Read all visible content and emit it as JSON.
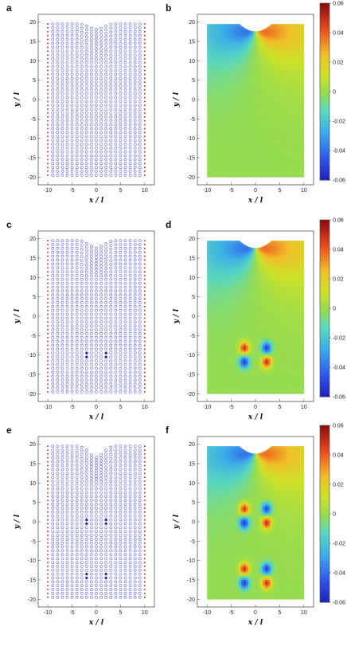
{
  "chart_data": [
    {
      "type": "scatter",
      "panel": "a",
      "xlabel": "x / l",
      "ylabel": "y / l",
      "x_ticks": [
        "-10",
        "-5",
        "0",
        "5",
        "10"
      ],
      "y_ticks": [
        "20",
        "15",
        "10",
        "5",
        "0",
        "-5",
        "-10",
        "-15",
        "-20"
      ],
      "xlim": [
        -12,
        12
      ],
      "ylim": [
        -22,
        22
      ],
      "series": [],
      "lattice": {
        "x_range": [
          -10,
          10
        ],
        "y_range": [
          -20,
          19.5
        ],
        "notch": [
          {
            "x": 0,
            "depth": 1.5
          }
        ],
        "dislocations": []
      },
      "colors": {
        "atoms": "#5a5ae6",
        "boundary": "#e03030"
      }
    },
    {
      "type": "heatmap",
      "panel": "b",
      "xlabel": "x / l",
      "ylabel": "y / l",
      "x_ticks": [
        "-10",
        "-5",
        "0",
        "5",
        "10"
      ],
      "y_ticks": [
        "20",
        "15",
        "10",
        "5",
        "0",
        "-5",
        "-10",
        "-15",
        "-20"
      ],
      "xlim": [
        -12,
        12
      ],
      "ylim": [
        -22,
        22
      ],
      "colorbar": {
        "min": -0.06,
        "max": 0.06,
        "ticks": [
          "0.06",
          "0.04",
          "0.02",
          "0",
          "-0.02",
          "-0.04",
          "-0.06"
        ]
      },
      "field": {
        "notch": {
          "x": 0,
          "y": 17.5,
          "amplitude": 0.06
        },
        "dislocation_dipoles": []
      }
    },
    {
      "type": "scatter",
      "panel": "c",
      "xlabel": "x / l",
      "ylabel": "y / l",
      "x_ticks": [
        "-10",
        "-5",
        "0",
        "5",
        "10"
      ],
      "y_ticks": [
        "20",
        "15",
        "10",
        "5",
        "0",
        "-5",
        "-10",
        "-15",
        "-20"
      ],
      "xlim": [
        -12,
        12
      ],
      "ylim": [
        -22,
        22
      ],
      "series": [],
      "lattice": {
        "x_range": [
          -10,
          10
        ],
        "y_range": [
          -20,
          19.5
        ],
        "notch": [
          {
            "x": 0,
            "depth": 2
          }
        ],
        "dislocations": [
          {
            "x": -2,
            "y": -10
          },
          {
            "x": 2,
            "y": -10
          }
        ]
      },
      "colors": {
        "atoms": "#5a5ae6",
        "boundary": "#e03030"
      }
    },
    {
      "type": "heatmap",
      "panel": "d",
      "xlabel": "x / l",
      "ylabel": "y / l",
      "x_ticks": [
        "-10",
        "-5",
        "0",
        "5",
        "10"
      ],
      "y_ticks": [
        "20",
        "15",
        "10",
        "5",
        "0",
        "-5",
        "-10",
        "-15",
        "-20"
      ],
      "xlim": [
        -12,
        12
      ],
      "ylim": [
        -22,
        22
      ],
      "colorbar": {
        "min": -0.06,
        "max": 0.06,
        "ticks": [
          "0.06",
          "0.04",
          "0.02",
          "0",
          "-0.02",
          "-0.04",
          "-0.06"
        ]
      },
      "field": {
        "notch": {
          "x": 0,
          "y": 17.5,
          "amplitude": 0.06
        },
        "dislocation_dipoles": [
          {
            "x": -2.3,
            "y": -10
          }
        ]
      }
    },
    {
      "type": "scatter",
      "panel": "e",
      "xlabel": "x / l",
      "ylabel": "y / l",
      "x_ticks": [
        "-10",
        "-5",
        "0",
        "5",
        "10"
      ],
      "y_ticks": [
        "20",
        "15",
        "10",
        "5",
        "0",
        "-5",
        "-10",
        "-15",
        "-20"
      ],
      "xlim": [
        -12,
        12
      ],
      "ylim": [
        -22,
        22
      ],
      "series": [],
      "lattice": {
        "x_range": [
          -10,
          10
        ],
        "y_range": [
          -20,
          19.5
        ],
        "notch": [
          {
            "x": 0,
            "depth": 3
          }
        ],
        "dislocations": [
          {
            "x": -2,
            "y": 0
          },
          {
            "x": 2,
            "y": 0
          },
          {
            "x": -2,
            "y": -14
          },
          {
            "x": 2,
            "y": -14
          }
        ]
      },
      "colors": {
        "atoms": "#5a5ae6",
        "boundary": "#e03030"
      }
    },
    {
      "type": "heatmap",
      "panel": "f",
      "xlabel": "x / l",
      "ylabel": "y / l",
      "x_ticks": [
        "-10",
        "-5",
        "0",
        "5",
        "10"
      ],
      "y_ticks": [
        "20",
        "15",
        "10",
        "5",
        "0",
        "-5",
        "-10",
        "-15",
        "-20"
      ],
      "xlim": [
        -12,
        12
      ],
      "ylim": [
        -22,
        22
      ],
      "colorbar": {
        "min": -0.06,
        "max": 0.06,
        "ticks": [
          "0.06",
          "0.04",
          "0.02",
          "0",
          "-0.02",
          "-0.04",
          "-0.06"
        ]
      },
      "field": {
        "notch": {
          "x": 0,
          "y": 17.5,
          "amplitude": 0.06
        },
        "dislocation_dipoles": [
          {
            "x": -2.3,
            "y": 1.5
          },
          {
            "x": -2.3,
            "y": -14
          }
        ]
      }
    }
  ]
}
